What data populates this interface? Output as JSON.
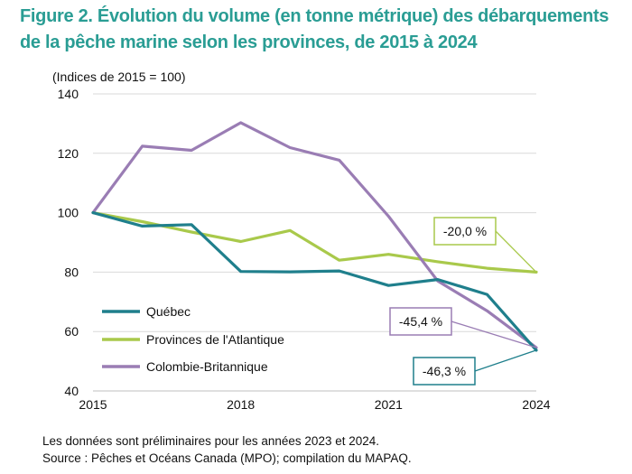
{
  "title": {
    "line1": "Figure 2. Évolution du volume (en tonne métrique) des débarquements",
    "line2": "de la pêche marine selon les provinces, de 2015 à 2024"
  },
  "notes": {
    "preliminary": "Les données sont préliminaires pour les années 2023 et 2024.",
    "source": "Source : Pêches et Océans Canada (MPO); compilation du MAPAQ."
  },
  "chart_data": {
    "type": "line",
    "ylabel": "(Indices de 2015 = 100)",
    "xlabel": "",
    "x": [
      2015,
      2016,
      2017,
      2018,
      2019,
      2020,
      2021,
      2022,
      2023,
      2024
    ],
    "xticks": [
      "2015",
      "2018",
      "2021",
      "2024"
    ],
    "ylim": [
      40,
      140
    ],
    "yticks": [
      40,
      60,
      80,
      100,
      120,
      140
    ],
    "grid": true,
    "legend_position": "bottom-left",
    "series": [
      {
        "name": "Québec",
        "color": "#1f7f8c",
        "values": [
          100,
          95.5,
          96,
          80.2,
          80.1,
          80.4,
          75.5,
          77.5,
          72.5,
          53.7
        ]
      },
      {
        "name": "Provinces de l'Atlantique",
        "color": "#a9c94b",
        "values": [
          100,
          97,
          93.5,
          90.3,
          94,
          84,
          86,
          83.5,
          81.3,
          80
        ]
      },
      {
        "name": "Colombie-Britannique",
        "color": "#9a7db4",
        "values": [
          100,
          122.4,
          121,
          130.3,
          121.9,
          117.7,
          98.8,
          77,
          67,
          54.6
        ]
      }
    ],
    "annotations": [
      {
        "text": "-20,0 %",
        "series": "Provinces de l'Atlantique",
        "year": 2024,
        "color": "#a9c94b"
      },
      {
        "text": "-45,4 %",
        "series": "Colombie-Britannique",
        "year": 2024,
        "color": "#9a7db4"
      },
      {
        "text": "-46,3 %",
        "series": "Québec",
        "year": 2024,
        "color": "#1f7f8c"
      }
    ]
  }
}
